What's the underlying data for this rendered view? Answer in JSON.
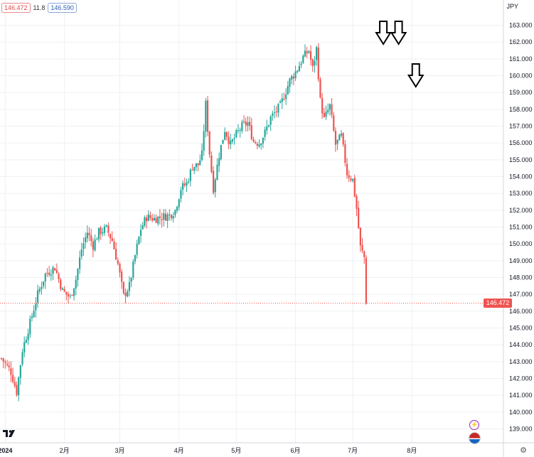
{
  "toolbar": {
    "bid_price": "146.472",
    "spread": "11.8",
    "ask_price": "146.590"
  },
  "currency_label": "JPY",
  "last_price_tag": "146.472",
  "colors": {
    "up": "#26a69a",
    "down": "#ef5350",
    "grid": "#eef0f3",
    "arrow": "#000000"
  },
  "icons": [
    "tradingview-logo-icon",
    "lightning-icon",
    "us-flag-icon",
    "gear-icon",
    "down-arrow-icon"
  ],
  "chart_data": {
    "type": "candlestick",
    "title": "",
    "y_range": [
      138.5,
      163.5
    ],
    "y_ticks": [
      "163.000",
      "162.000",
      "161.000",
      "160.000",
      "159.000",
      "158.000",
      "157.000",
      "156.000",
      "155.000",
      "154.000",
      "153.000",
      "152.000",
      "151.000",
      "150.000",
      "149.000",
      "148.000",
      "147.000",
      "146.000",
      "145.000",
      "144.000",
      "143.000",
      "142.000",
      "141.000",
      "140.000",
      "139.000"
    ],
    "x_labels": [
      "2024",
      "2月",
      "3月",
      "4月",
      "5月",
      "6月",
      "7月",
      "8月"
    ],
    "x_label_days": [
      1,
      32,
      61,
      92,
      122,
      153,
      183,
      214
    ],
    "x_range_days": [
      -1,
      247
    ],
    "last_price": 146.472,
    "annotations": {
      "down_arrows_at_days": [
        199,
        207,
        216
      ]
    },
    "waypoints": [
      [
        -1,
        143.2
      ],
      [
        4,
        142.4
      ],
      [
        7,
        141.2
      ],
      [
        10,
        143.7
      ],
      [
        14,
        145.3
      ],
      [
        18,
        147.0
      ],
      [
        22,
        148.2
      ],
      [
        27,
        148.6
      ],
      [
        31,
        147.2
      ],
      [
        35,
        146.8
      ],
      [
        38,
        147.9
      ],
      [
        41,
        149.7
      ],
      [
        44,
        150.7
      ],
      [
        47,
        149.9
      ],
      [
        50,
        150.7
      ],
      [
        54,
        150.9
      ],
      [
        57,
        150.2
      ],
      [
        60,
        148.8
      ],
      [
        63,
        146.9
      ],
      [
        66,
        147.5
      ],
      [
        69,
        149.3
      ],
      [
        72,
        150.9
      ],
      [
        75,
        151.6
      ],
      [
        79,
        151.5
      ],
      [
        83,
        151.6
      ],
      [
        87,
        151.7
      ],
      [
        90,
        152.0
      ],
      [
        93,
        153.3
      ],
      [
        96,
        153.6
      ],
      [
        99,
        154.6
      ],
      [
        102,
        154.7
      ],
      [
        104,
        155.3
      ],
      [
        106,
        158.3
      ],
      [
        108,
        155.4
      ],
      [
        110,
        153.3
      ],
      [
        113,
        155.3
      ],
      [
        116,
        156.8
      ],
      [
        119,
        155.9
      ],
      [
        122,
        156.5
      ],
      [
        125,
        157.0
      ],
      [
        128,
        157.2
      ],
      [
        131,
        156.1
      ],
      [
        134,
        156.0
      ],
      [
        137,
        156.6
      ],
      [
        140,
        157.5
      ],
      [
        145,
        158.2
      ],
      [
        150,
        159.7
      ],
      [
        154,
        160.4
      ],
      [
        157,
        161.1
      ],
      [
        160,
        161.5
      ],
      [
        162,
        160.4
      ],
      [
        164,
        161.6
      ],
      [
        166,
        158.5
      ],
      [
        168,
        157.4
      ],
      [
        171,
        158.2
      ],
      [
        174,
        155.9
      ],
      [
        177,
        156.4
      ],
      [
        180,
        154.2
      ],
      [
        183,
        153.8
      ],
      [
        185,
        152.1
      ],
      [
        187,
        149.8
      ],
      [
        189,
        149.2
      ],
      [
        190,
        146.472
      ]
    ]
  }
}
